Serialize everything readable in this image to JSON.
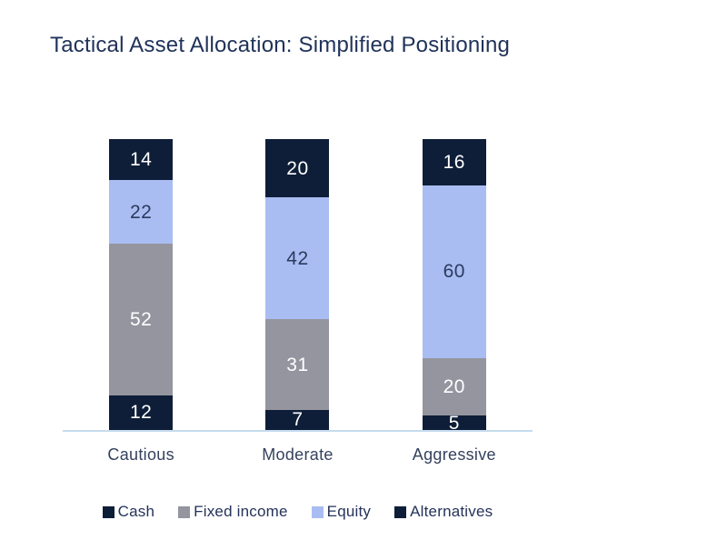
{
  "chart_data": {
    "type": "bar",
    "stacked": true,
    "title": "Tactical Asset Allocation: Simplified Positioning",
    "categories": [
      "Cautious",
      "Moderate",
      "Aggressive"
    ],
    "series": [
      {
        "name": "Cash",
        "color": "#0e1e38",
        "label_color": "#ffffff",
        "values": [
          12,
          7,
          5
        ]
      },
      {
        "name": "Fixed income",
        "color": "#94959f",
        "label_color": "#ffffff",
        "values": [
          52,
          31,
          20
        ]
      },
      {
        "name": "Equity",
        "color": "#a9bdf2",
        "label_color": "#2b3a5e",
        "values": [
          22,
          42,
          60
        ]
      },
      {
        "name": "Alternatives",
        "color": "#0e1e38",
        "label_color": "#ffffff",
        "values": [
          14,
          20,
          16
        ]
      }
    ],
    "ylim": [
      0,
      100
    ],
    "xlabel": "",
    "ylabel": "",
    "grid": false,
    "legend_position": "bottom",
    "colors": {
      "title": "#20335a",
      "category_label": "#35425e",
      "legend_label": "#25335a",
      "axis_line": "#c6dcee",
      "background": "#ffffff"
    }
  }
}
